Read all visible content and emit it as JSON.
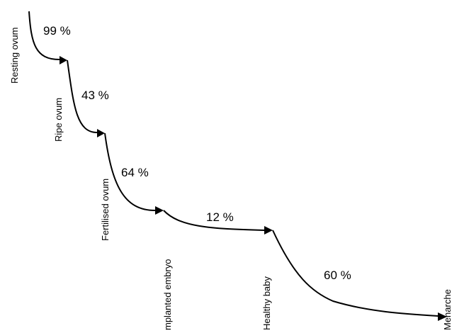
{
  "stages": [
    {
      "label": "Resting ovum"
    },
    {
      "label": "Ripe ovum"
    },
    {
      "label": "Fertilised ovum"
    },
    {
      "label": "mplanted embryo"
    },
    {
      "label": "Healthy baby"
    },
    {
      "label": "Menarche"
    }
  ],
  "transitions": [
    {
      "from": "Resting ovum",
      "to": "Ripe ovum",
      "percent": "99 %"
    },
    {
      "from": "Ripe ovum",
      "to": "Fertilised ovum",
      "percent": "43 %"
    },
    {
      "from": "Fertilised ovum",
      "to": "mplanted embryo",
      "percent": "64 %"
    },
    {
      "from": "mplanted embryo",
      "to": "Healthy baby",
      "percent": "12 %"
    },
    {
      "from": "Healthy baby",
      "to": "Menarche",
      "percent": "60 %"
    }
  ]
}
